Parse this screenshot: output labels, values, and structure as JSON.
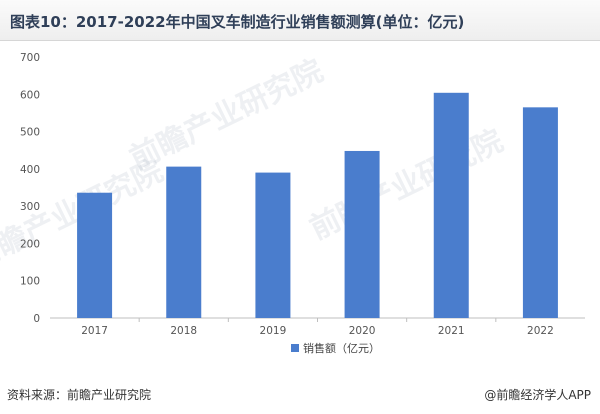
{
  "title": "图表10：2017-2022年中国叉车制造行业销售额测算(单位：亿元)",
  "source": "资料来源：前瞻产业研究院",
  "credit": "@前瞻经济学人APP",
  "watermark": "前瞻产业研究院",
  "colors": {
    "bar": "#4a7dcd",
    "axis": "#bfbfbf",
    "title_bg": "#eeeeee"
  },
  "chart_data": {
    "type": "bar",
    "categories": [
      "2017",
      "2018",
      "2019",
      "2020",
      "2021",
      "2022"
    ],
    "series": [
      {
        "name": "销售额（亿元）",
        "values": [
          336,
          406,
          390,
          448,
          604,
          565
        ]
      }
    ],
    "ylim": [
      0,
      700
    ],
    "yticks": [
      0,
      100,
      200,
      300,
      400,
      500,
      600,
      700
    ],
    "grid": false,
    "legend": "bottom-center"
  }
}
